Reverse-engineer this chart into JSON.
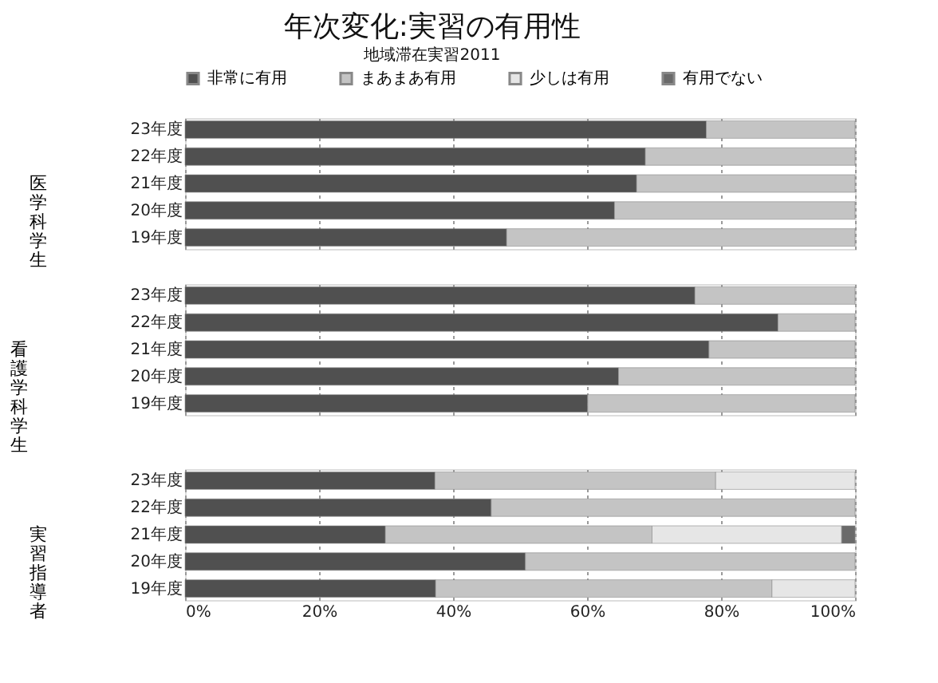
{
  "chart_data": [
    {
      "type": "bar",
      "orientation": "horizontal",
      "stacked": true,
      "title": "年次変化:実習の有用性",
      "subtitle": "地域滞在実習2011",
      "ylabel": "医学科学生",
      "categories": [
        "23年度",
        "22年度",
        "21年度",
        "20年度",
        "19年度"
      ],
      "series": [
        {
          "name": "非常に有用",
          "color": "#505050",
          "values": [
            77.8,
            68.7,
            67.4,
            64.1,
            48.0
          ]
        },
        {
          "name": "まあまあ有用",
          "color": "#c4c4c4",
          "values": [
            22.2,
            31.3,
            32.6,
            35.9,
            52.0
          ]
        },
        {
          "name": "少しは有用",
          "color": "#e6e6e6",
          "values": [
            null,
            null,
            null,
            null,
            null
          ]
        },
        {
          "name": "有用でない",
          "color": "#6a6a6a",
          "values": [
            null,
            null,
            null,
            null,
            null
          ]
        }
      ],
      "xlim": [
        0,
        100
      ],
      "xticks": [
        0,
        20,
        40,
        60,
        80,
        100
      ],
      "grid": "x",
      "legend": "top",
      "tick_labels": "y"
    },
    {
      "type": "bar",
      "orientation": "horizontal",
      "stacked": true,
      "ylabel": "看護学科学生",
      "categories": [
        "23年度",
        "22年度",
        "21年度",
        "20年度",
        "19年度"
      ],
      "series": [
        {
          "color": "#505050",
          "values": [
            76.1,
            88.5,
            78.2,
            64.7,
            60.1
          ]
        },
        {
          "color": "#c4c4c4",
          "values": [
            23.9,
            11.5,
            21.8,
            35.3,
            39.9
          ]
        }
      ],
      "xlim": [
        0,
        100
      ],
      "xticks": [
        0,
        20,
        40,
        60,
        80,
        100
      ],
      "grid": "x",
      "tick_labels": "y"
    },
    {
      "type": "bar",
      "orientation": "horizontal",
      "stacked": true,
      "ylabel": "実習指導者",
      "categories": [
        "23年度",
        "22年度",
        "21年度",
        "20年度",
        "19年度"
      ],
      "series": [
        {
          "color": "#505050",
          "values": [
            37.3,
            45.7,
            29.9,
            50.8,
            37.4
          ]
        },
        {
          "color": "#c4c4c4",
          "values": [
            41.9,
            54.3,
            39.8,
            49.2,
            50.2
          ]
        },
        {
          "color": "#e6e6e6",
          "values": [
            20.8,
            null,
            28.3,
            null,
            12.4
          ]
        },
        {
          "color": "#6a6a6a",
          "values": [
            null,
            null,
            2.0,
            null,
            null
          ]
        }
      ],
      "xlim": [
        0,
        100
      ],
      "xticks": [
        {
          "value": 0,
          "label": "0%"
        },
        {
          "value": 20,
          "label": "20%"
        },
        {
          "value": 40,
          "label": "40%"
        },
        {
          "value": 60,
          "label": "60%"
        },
        {
          "value": 80,
          "label": "80%"
        },
        {
          "value": 100,
          "label": "100%"
        }
      ],
      "grid": "x"
    }
  ]
}
